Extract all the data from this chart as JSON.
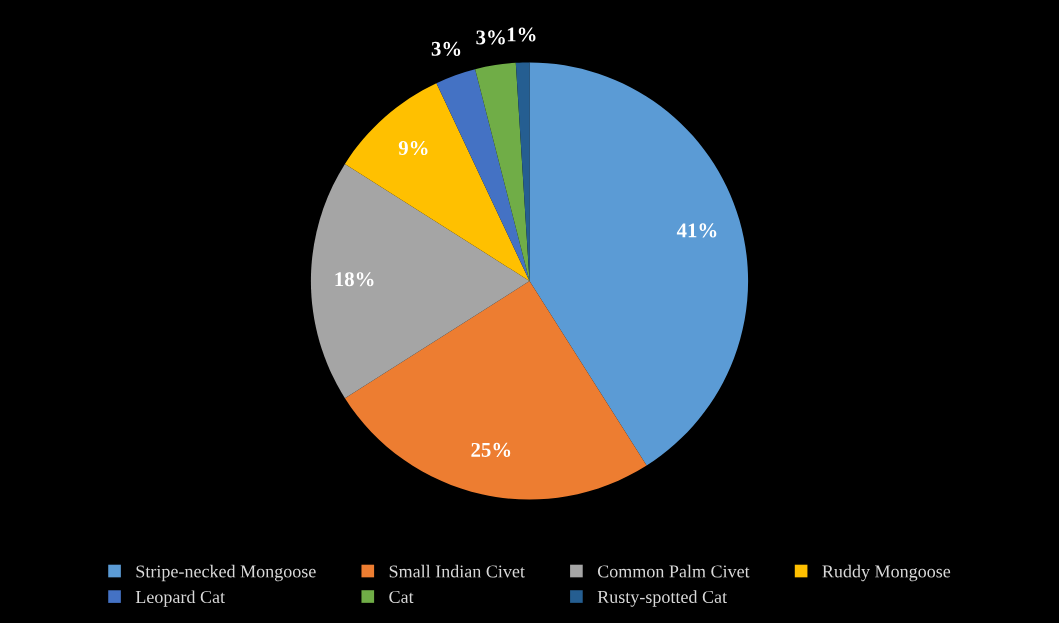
{
  "chart_data": {
    "type": "pie",
    "categories": [
      "Stripe-necked Mongoose",
      "Small Indian Civet",
      "Common Palm Civet",
      "Ruddy Mongoose",
      "Leopard Cat",
      "Cat",
      "Rusty-spotted Cat"
    ],
    "values": [
      41,
      25,
      18,
      9,
      3,
      3,
      1
    ],
    "colors": [
      "#5b9bd5",
      "#ed7d31",
      "#a5a5a5",
      "#ffc000",
      "#4472c4",
      "#70ad47",
      "#255e91"
    ],
    "value_labels": [
      "41%",
      "25%",
      "18%",
      "9%",
      "3%",
      "3%",
      "1%"
    ],
    "legend": "bottom"
  }
}
